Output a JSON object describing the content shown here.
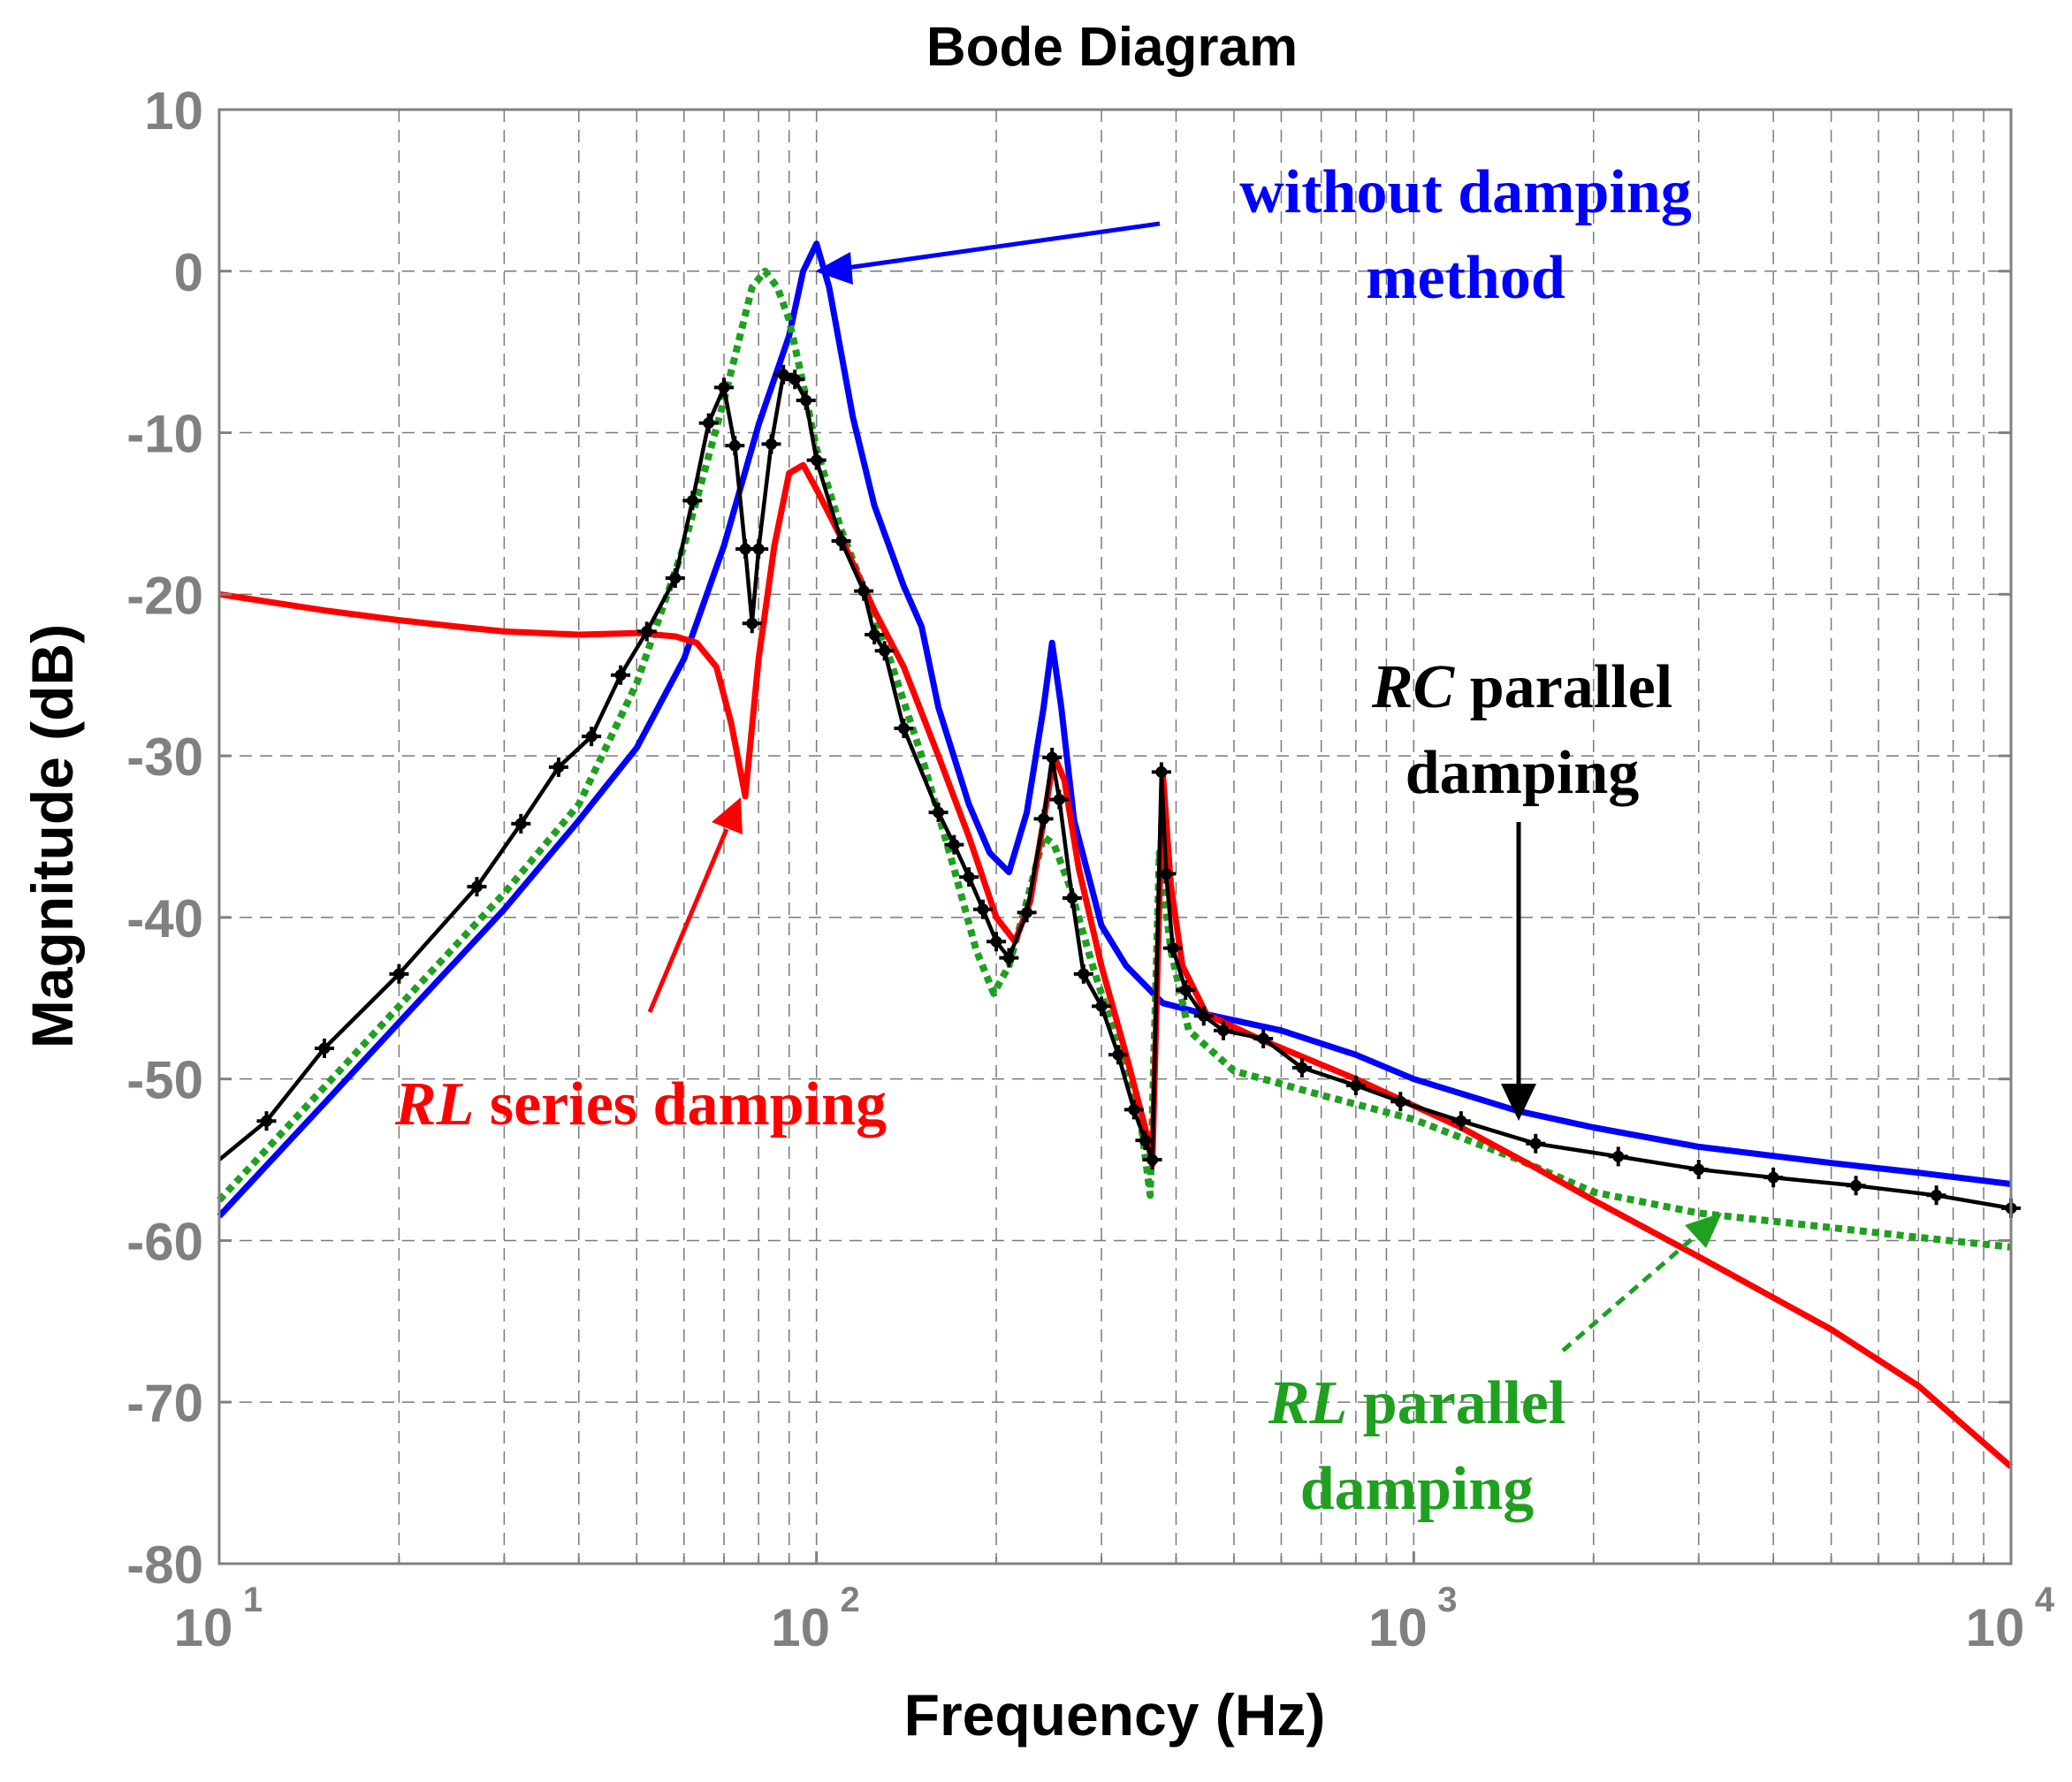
{
  "chart_data": {
    "type": "line",
    "title": "Bode Diagram",
    "xlabel": "Frequency  (Hz)",
    "ylabel": "Magnitude (dB)",
    "xscale": "log",
    "xlim": [
      10,
      10000
    ],
    "ylim": [
      -80,
      10
    ],
    "grid": true,
    "yticks": [
      10,
      0,
      -10,
      -20,
      -30,
      -40,
      -50,
      -60,
      -70,
      -80
    ],
    "xticks": [
      {
        "base": "10",
        "exp": "1",
        "value": 10
      },
      {
        "base": "10",
        "exp": "2",
        "value": 100
      },
      {
        "base": "10",
        "exp": "3",
        "value": 1000
      },
      {
        "base": "10",
        "exp": "4",
        "value": 10000
      }
    ],
    "series": [
      {
        "name": "without damping method",
        "color": "#0000ff",
        "style": "solid",
        "points": [
          [
            10,
            -58.5
          ],
          [
            15,
            -51.5
          ],
          [
            20,
            -46.5
          ],
          [
            30,
            -39.5
          ],
          [
            40,
            -34
          ],
          [
            50,
            -29.5
          ],
          [
            60,
            -24
          ],
          [
            70,
            -17
          ],
          [
            80,
            -9.5
          ],
          [
            90,
            -4
          ],
          [
            95,
            0
          ],
          [
            100,
            1.7
          ],
          [
            105,
            -1
          ],
          [
            115,
            -9
          ],
          [
            125,
            -14.5
          ],
          [
            140,
            -19.5
          ],
          [
            150,
            -22
          ],
          [
            160,
            -27
          ],
          [
            180,
            -33
          ],
          [
            195,
            -36
          ],
          [
            210,
            -37.2
          ],
          [
            225,
            -33.5
          ],
          [
            240,
            -27
          ],
          [
            248,
            -23
          ],
          [
            257,
            -27
          ],
          [
            270,
            -34
          ],
          [
            300,
            -40.5
          ],
          [
            330,
            -43
          ],
          [
            380,
            -45.3
          ],
          [
            450,
            -46
          ],
          [
            600,
            -47
          ],
          [
            800,
            -48.5
          ],
          [
            1000,
            -50
          ],
          [
            1500,
            -52
          ],
          [
            2000,
            -53
          ],
          [
            3000,
            -54.2
          ],
          [
            5000,
            -55.2
          ],
          [
            7000,
            -55.8
          ],
          [
            10000,
            -56.5
          ]
        ]
      },
      {
        "name": "RL series damping",
        "color": "#ff0000",
        "style": "solid",
        "points": [
          [
            10,
            -20
          ],
          [
            15,
            -21
          ],
          [
            20,
            -21.6
          ],
          [
            25,
            -22
          ],
          [
            30,
            -22.3
          ],
          [
            40,
            -22.5
          ],
          [
            50,
            -22.4
          ],
          [
            58,
            -22.6
          ],
          [
            63,
            -23
          ],
          [
            68,
            -24.5
          ],
          [
            72,
            -28
          ],
          [
            76,
            -32.5
          ],
          [
            80,
            -24
          ],
          [
            85,
            -17
          ],
          [
            90,
            -12.5
          ],
          [
            95,
            -12
          ],
          [
            100,
            -13.5
          ],
          [
            110,
            -16.5
          ],
          [
            125,
            -21
          ],
          [
            140,
            -24.5
          ],
          [
            160,
            -30
          ],
          [
            180,
            -35
          ],
          [
            200,
            -40
          ],
          [
            215,
            -41.5
          ],
          [
            228,
            -39
          ],
          [
            240,
            -34
          ],
          [
            250,
            -30
          ],
          [
            260,
            -31.5
          ],
          [
            275,
            -37
          ],
          [
            300,
            -43
          ],
          [
            330,
            -48.5
          ],
          [
            355,
            -53
          ],
          [
            365,
            -55.3
          ],
          [
            380,
            -31
          ],
          [
            392,
            -38
          ],
          [
            410,
            -43
          ],
          [
            450,
            -46
          ],
          [
            550,
            -47.5
          ],
          [
            800,
            -50
          ],
          [
            1200,
            -53
          ],
          [
            1600,
            -55.5
          ],
          [
            2000,
            -57.5
          ],
          [
            3000,
            -61
          ],
          [
            5000,
            -65.5
          ],
          [
            7000,
            -69
          ],
          [
            10000,
            -74
          ]
        ]
      },
      {
        "name": "RC parallel damping",
        "color": "#000000",
        "style": "solid-markers",
        "points": [
          [
            10,
            -55
          ],
          [
            12,
            -52.6
          ],
          [
            15,
            -48.1
          ],
          [
            20,
            -43.5
          ],
          [
            27,
            -38.1
          ],
          [
            32,
            -34.2
          ],
          [
            37,
            -30.7
          ],
          [
            42,
            -28.8
          ],
          [
            47,
            -25
          ],
          [
            52,
            -22.3
          ],
          [
            58,
            -19
          ],
          [
            62,
            -14.2
          ],
          [
            66,
            -9.4
          ],
          [
            70,
            -7.2
          ],
          [
            73,
            -10.8
          ],
          [
            76,
            -17.2
          ],
          [
            78,
            -21.8
          ],
          [
            80,
            -17.2
          ],
          [
            84,
            -10.7
          ],
          [
            88,
            -6.4
          ],
          [
            92,
            -6.7
          ],
          [
            96,
            -8
          ],
          [
            100,
            -11.7
          ],
          [
            110,
            -16.7
          ],
          [
            120,
            -19.8
          ],
          [
            125,
            -22.5
          ],
          [
            130,
            -23.5
          ],
          [
            140,
            -28.3
          ],
          [
            160,
            -33.5
          ],
          [
            170,
            -35.5
          ],
          [
            180,
            -37.5
          ],
          [
            190,
            -39.5
          ],
          [
            200,
            -41.5
          ],
          [
            210,
            -42.5
          ],
          [
            225,
            -39.7
          ],
          [
            240,
            -33.9
          ],
          [
            248,
            -30.1
          ],
          [
            255,
            -32.7
          ],
          [
            268,
            -38.8
          ],
          [
            280,
            -43.5
          ],
          [
            300,
            -45.5
          ],
          [
            320,
            -48.5
          ],
          [
            340,
            -51.9
          ],
          [
            355,
            -53.8
          ],
          [
            365,
            -55
          ],
          [
            378,
            -31
          ],
          [
            385,
            -37.3
          ],
          [
            395,
            -41.9
          ],
          [
            415,
            -44.5
          ],
          [
            445,
            -46.1
          ],
          [
            480,
            -47
          ],
          [
            560,
            -47.5
          ],
          [
            650,
            -49.3
          ],
          [
            800,
            -50.4
          ],
          [
            950,
            -51.4
          ],
          [
            1200,
            -52.6
          ],
          [
            1600,
            -54
          ],
          [
            2200,
            -54.8
          ],
          [
            3000,
            -55.6
          ],
          [
            4000,
            -56.1
          ],
          [
            5500,
            -56.6
          ],
          [
            7500,
            -57.2
          ],
          [
            10000,
            -58
          ]
        ]
      },
      {
        "name": "RL parallel damping",
        "color": "#1fa01f",
        "style": "dotted",
        "points": [
          [
            10,
            -57.5
          ],
          [
            15,
            -50.5
          ],
          [
            20,
            -45.5
          ],
          [
            30,
            -38.5
          ],
          [
            40,
            -33
          ],
          [
            50,
            -25.5
          ],
          [
            60,
            -17
          ],
          [
            70,
            -8
          ],
          [
            78,
            -1
          ],
          [
            82,
            0
          ],
          [
            86,
            -1
          ],
          [
            90,
            -3
          ],
          [
            95,
            -7
          ],
          [
            100,
            -11
          ],
          [
            110,
            -16
          ],
          [
            130,
            -23
          ],
          [
            150,
            -30
          ],
          [
            170,
            -37
          ],
          [
            185,
            -42
          ],
          [
            198,
            -44.7
          ],
          [
            210,
            -43
          ],
          [
            225,
            -39
          ],
          [
            240,
            -35
          ],
          [
            250,
            -35.5
          ],
          [
            265,
            -38
          ],
          [
            290,
            -43
          ],
          [
            320,
            -48
          ],
          [
            350,
            -53
          ],
          [
            362,
            -57.2
          ],
          [
            375,
            -36
          ],
          [
            392,
            -42
          ],
          [
            420,
            -47
          ],
          [
            500,
            -49.5
          ],
          [
            700,
            -51
          ],
          [
            1000,
            -52.5
          ],
          [
            1500,
            -55
          ],
          [
            2000,
            -57
          ],
          [
            3000,
            -58.3
          ],
          [
            5000,
            -59.2
          ],
          [
            7000,
            -59.8
          ],
          [
            10000,
            -60.4
          ]
        ]
      }
    ],
    "annotations": [
      {
        "lines": [
          "without damping method"
        ],
        "line1": "without damping",
        "line2": "method",
        "color": "#0000ff"
      },
      {
        "line1_italic": "RC",
        "line1_rest": " parallel",
        "line2": "damping",
        "color": "#000000"
      },
      {
        "line1_italic": "RL",
        "line1_rest": " series damping",
        "color": "#ff0000"
      },
      {
        "line1_italic": "RL",
        "line1_rest": " parallel",
        "line2": "damping",
        "color": "#1fa01f"
      }
    ]
  }
}
